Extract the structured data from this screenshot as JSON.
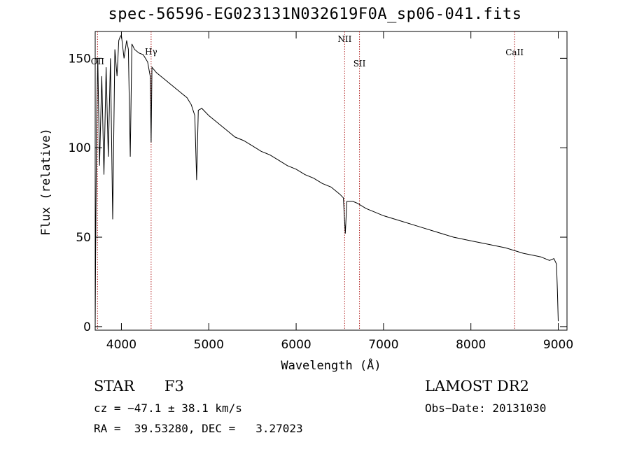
{
  "chart_data": {
    "type": "line",
    "title": "spec-56596-EG023131N032619F0A_sp06-041.fits",
    "xlabel": "Wavelength (Å)",
    "ylabel": "Flux (relative)",
    "xlim": [
      3700,
      9100
    ],
    "ylim": [
      -2,
      165
    ],
    "xticks": [
      4000,
      5000,
      6000,
      7000,
      8000,
      9000
    ],
    "yticks": [
      0,
      50,
      100,
      150
    ],
    "grid": false,
    "series": [
      {
        "color": "#000000",
        "x": [
          3700,
          3705,
          3715,
          3730,
          3750,
          3775,
          3800,
          3825,
          3850,
          3875,
          3900,
          3925,
          3950,
          3970,
          3985,
          4000,
          4030,
          4060,
          4080,
          4101,
          4120,
          4150,
          4200,
          4250,
          4300,
          4330,
          4340,
          4350,
          4400,
          4450,
          4500,
          4550,
          4600,
          4650,
          4700,
          4750,
          4800,
          4840,
          4861,
          4880,
          4920,
          5000,
          5100,
          5200,
          5300,
          5400,
          5500,
          5600,
          5700,
          5800,
          5900,
          6000,
          6100,
          6200,
          6300,
          6400,
          6500,
          6540,
          6563,
          6580,
          6650,
          6700,
          6800,
          6900,
          7000,
          7200,
          7400,
          7600,
          7800,
          8000,
          8200,
          8400,
          8600,
          8800,
          8900,
          8950,
          8980,
          8990,
          9000
        ],
        "y": [
          0,
          40,
          110,
          150,
          90,
          140,
          85,
          145,
          95,
          150,
          60,
          155,
          140,
          160,
          162,
          163,
          150,
          160,
          155,
          95,
          158,
          155,
          153,
          152,
          148,
          140,
          103,
          145,
          142,
          140,
          138,
          136,
          134,
          132,
          130,
          128,
          124,
          118,
          82,
          121,
          122,
          118,
          114,
          110,
          106,
          104,
          101,
          98,
          96,
          93,
          90,
          88,
          85,
          83,
          80,
          78,
          74,
          72,
          52,
          70,
          70,
          69,
          66,
          64,
          62,
          59,
          56,
          53,
          50,
          48,
          46,
          44,
          41,
          39,
          37,
          38,
          35,
          20,
          3
        ]
      }
    ],
    "line_markers": [
      {
        "label": "OII",
        "x": 3727
      },
      {
        "label": "Hγ",
        "x": 4340
      },
      {
        "label": "NII",
        "x": 6555
      },
      {
        "label": "SII",
        "x": 6725
      },
      {
        "label": "CaII",
        "x": 8500
      }
    ]
  },
  "info": {
    "object_type": "STAR",
    "subclass": "F3",
    "survey": "LAMOST DR2",
    "redshift": "cz = −47.1 ± 38.1 km/s",
    "obs_date": "Obs−Date: 20131030",
    "coords": "RA =  39.53280, DEC =   3.27023"
  }
}
